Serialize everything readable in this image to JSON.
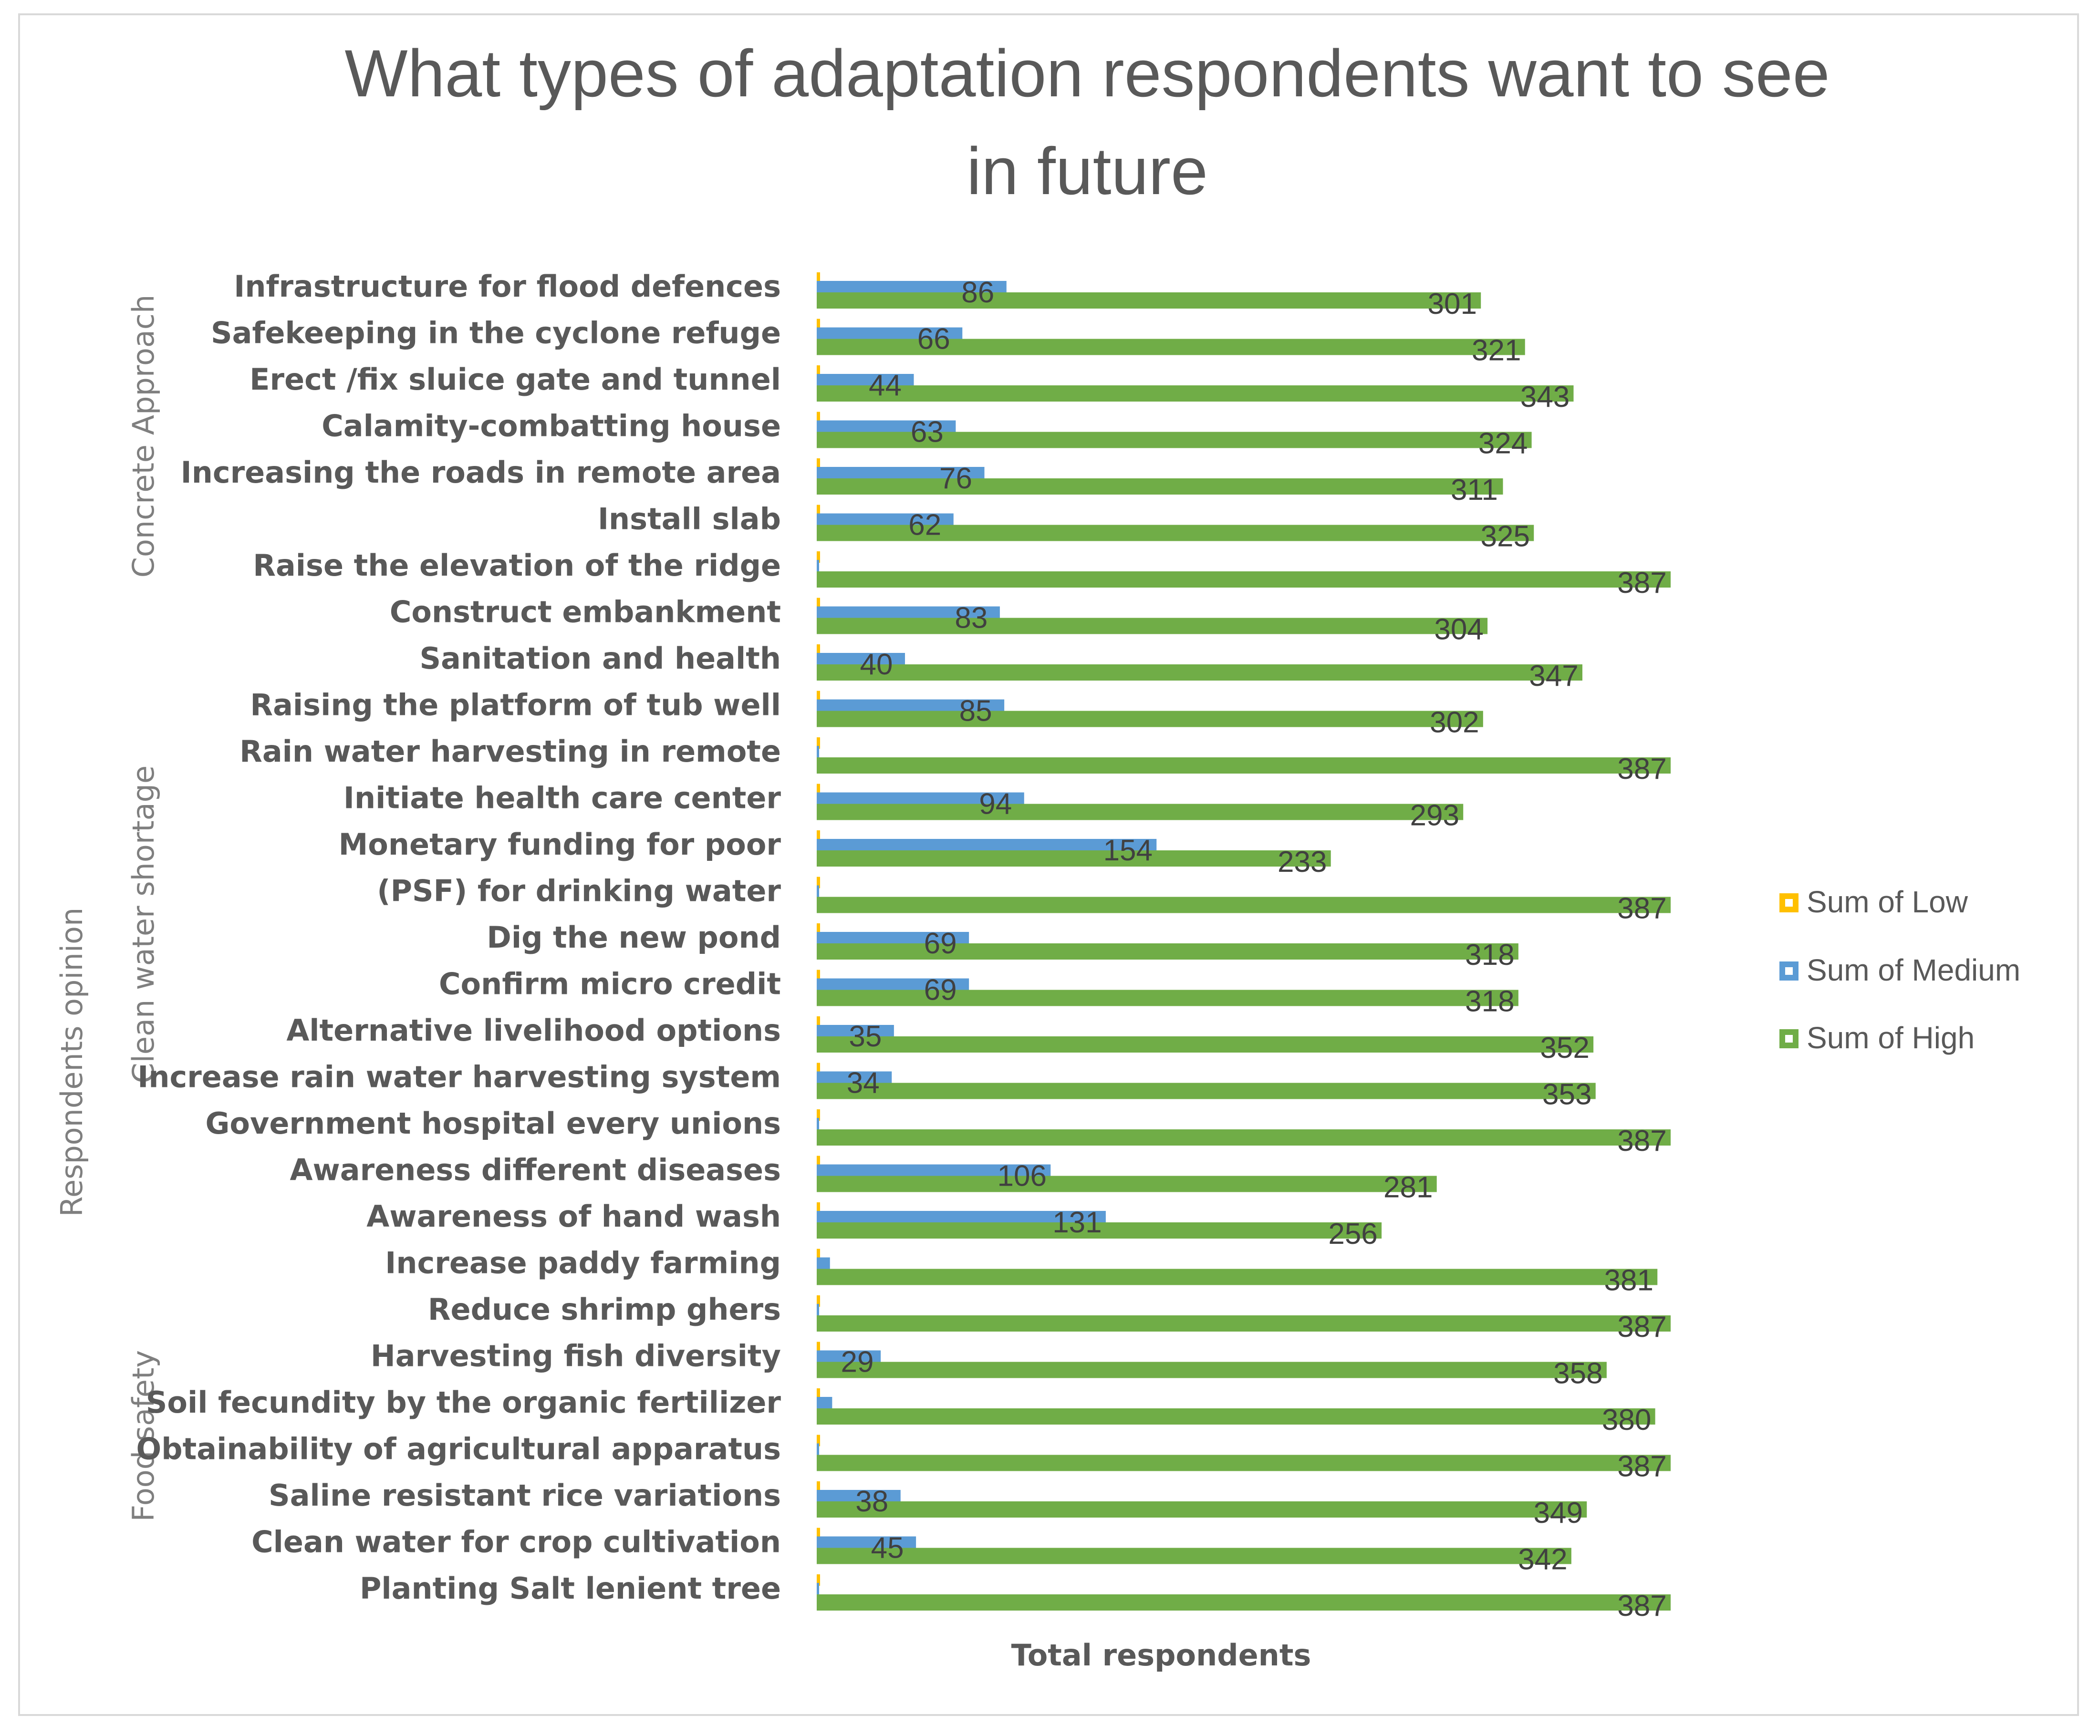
{
  "chart_data": {
    "type": "bar",
    "orientation": "horizontal",
    "title_lines": [
      "What types of adaptation respondents want to see",
      "in future"
    ],
    "xlabel": "Total respondents",
    "outer_axis_label": "Respondents opinion",
    "legend_position": "right",
    "categories": [
      "Infrastructure for flood defences",
      "Safekeeping in the cyclone refuge",
      "Erect /fix sluice gate and tunnel",
      "Calamity-combatting house",
      "Increasing the roads in remote area",
      "Install slab",
      "Raise the elevation of the ridge",
      "Construct embankment",
      "Sanitation and health",
      "Raising the platform of tub well",
      "Rain water harvesting in remote",
      "Initiate health care center",
      "Monetary funding for poor",
      "(PSF) for drinking water",
      "Dig the new pond",
      "Confirm micro credit",
      "Alternative livelihood options",
      "Increase rain water harvesting system",
      "Government hospital every unions",
      "Awareness different diseases",
      "Awareness of hand wash",
      "Increase paddy farming",
      "Reduce shrimp ghers",
      "Harvesting fish diversity",
      "Soil fecundity by the organic fertilizer",
      "Obtainability of agricultural apparatus",
      "Saline resistant rice variations",
      "Clean water for crop cultivation",
      "Planting Salt lenient tree"
    ],
    "groups": [
      {
        "name": "Concrete Approach",
        "start": 0,
        "end": 6
      },
      {
        "name": "Clean water shortage",
        "start": 7,
        "end": 20
      },
      {
        "name": "Food safety",
        "start": 21,
        "end": 28
      }
    ],
    "series": [
      {
        "name": "Sum of  Low",
        "color": "#ffc000",
        "values": [
          0,
          0,
          0,
          0,
          0,
          0,
          0,
          0,
          0,
          0,
          0,
          0,
          0,
          0,
          0,
          0,
          0,
          0,
          0,
          0,
          0,
          0,
          0,
          0,
          0,
          0,
          0,
          0,
          0
        ],
        "show_labels": false
      },
      {
        "name": "Sum of Medium",
        "color": "#5b9bd5",
        "values": [
          86,
          66,
          44,
          63,
          76,
          62,
          0,
          83,
          40,
          85,
          0,
          94,
          154,
          0,
          69,
          69,
          35,
          34,
          0,
          106,
          131,
          6,
          0,
          29,
          7,
          0,
          38,
          45,
          0
        ],
        "labels": [
          "86",
          "66",
          "44",
          "63",
          "76",
          "62",
          "",
          "83",
          "40",
          "85",
          "",
          "94",
          "154",
          "",
          "69",
          "69",
          "35",
          "34",
          "",
          "106",
          "131",
          "",
          "",
          "29",
          "",
          "",
          "38",
          "45",
          ""
        ]
      },
      {
        "name": "Sum of  High",
        "color": "#70ad47",
        "values": [
          301,
          321,
          343,
          324,
          311,
          325,
          387,
          304,
          347,
          302,
          387,
          293,
          233,
          387,
          318,
          318,
          352,
          353,
          387,
          281,
          256,
          381,
          387,
          358,
          380,
          387,
          349,
          342,
          387
        ],
        "labels": [
          "301",
          "321",
          "343",
          "324",
          "311",
          "325",
          "387",
          "304",
          "347",
          "302",
          "387",
          "293",
          "233",
          "387",
          "318",
          "318",
          "352",
          "353",
          "387",
          "281",
          "256",
          "381",
          "387",
          "358",
          "380",
          "387",
          "349",
          "342",
          "387"
        ]
      }
    ],
    "xlim": [
      0,
      387
    ]
  }
}
